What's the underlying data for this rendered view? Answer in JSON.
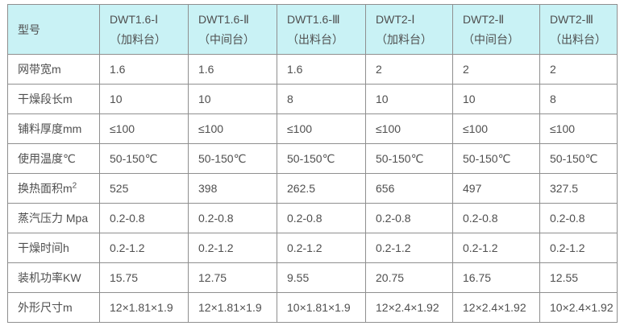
{
  "colors": {
    "header_background": "#c9f2f5",
    "outer_border": "#333333",
    "inner_border": "#8f8f8f",
    "text": "#4f4f4f",
    "page_background": "#ffffff"
  },
  "table": {
    "corner_label": "型号",
    "columns": [
      {
        "model": "DWT1.6-Ⅰ",
        "station": "（加料台）"
      },
      {
        "model": "DWT1.6-Ⅱ",
        "station": "（中间台）"
      },
      {
        "model": "DWT1.6-Ⅲ",
        "station": "（出料台）"
      },
      {
        "model": "DWT2-Ⅰ",
        "station": "（加料台）"
      },
      {
        "model": "DWT2-Ⅱ",
        "station": "（中间台）"
      },
      {
        "model": "DWT2-Ⅲ",
        "station": "（出料台）"
      }
    ],
    "rows": [
      {
        "label": "网带宽m",
        "label_sup": "",
        "values": [
          "1.6",
          "1.6",
          "1.6",
          "2",
          "2",
          "2"
        ]
      },
      {
        "label": "干燥段长m",
        "label_sup": "",
        "values": [
          "10",
          "10",
          "8",
          "10",
          "10",
          "8"
        ]
      },
      {
        "label": "铺料厚度mm",
        "label_sup": "",
        "values": [
          "≤100",
          "≤100",
          "≤100",
          "≤100",
          "≤100",
          "≤100"
        ]
      },
      {
        "label": "使用温度℃",
        "label_sup": "",
        "values": [
          "50-150℃",
          "50-150℃",
          "50-150℃",
          "50-150℃",
          "50-150℃",
          "50-150℃"
        ]
      },
      {
        "label": "换热面积m",
        "label_sup": "2",
        "values": [
          "525",
          "398",
          "262.5",
          "656",
          "497",
          "327.5"
        ]
      },
      {
        "label": "蒸汽压力 Mpa",
        "label_sup": "",
        "values": [
          "0.2-0.8",
          "0.2-0.8",
          "0.2-0.8",
          "0.2-0.8",
          "0.2-0.8",
          "0.2-0.8"
        ]
      },
      {
        "label": "干燥时间h",
        "label_sup": "",
        "values": [
          "0.2-1.2",
          "0.2-1.2",
          "0.2-1.2",
          "0.2-1.2",
          "0.2-1.2",
          "0.2-1.2"
        ]
      },
      {
        "label": "装机功率KW",
        "label_sup": "",
        "values": [
          "15.75",
          "12.75",
          "9.55",
          "20.75",
          "16.75",
          "12.55"
        ]
      },
      {
        "label": "外形尺寸m",
        "label_sup": "",
        "values": [
          "12×1.81×1.9",
          "12×1.81×1.9",
          "10×1.81×1.9",
          "12×2.4×1.92",
          "12×2.4×1.92",
          "10×2.4×1.92"
        ]
      }
    ]
  },
  "chart_data": {
    "type": "table",
    "title": "",
    "columns": [
      "型号",
      "DWT1.6-Ⅰ（加料台）",
      "DWT1.6-Ⅱ（中间台）",
      "DWT1.6-Ⅲ（出料台）",
      "DWT2-Ⅰ（加料台）",
      "DWT2-Ⅱ（中间台）",
      "DWT2-Ⅲ（出料台）"
    ],
    "rows": [
      [
        "网带宽m",
        "1.6",
        "1.6",
        "1.6",
        "2",
        "2",
        "2"
      ],
      [
        "干燥段长m",
        "10",
        "10",
        "8",
        "10",
        "10",
        "8"
      ],
      [
        "铺料厚度mm",
        "≤100",
        "≤100",
        "≤100",
        "≤100",
        "≤100",
        "≤100"
      ],
      [
        "使用温度℃",
        "50-150℃",
        "50-150℃",
        "50-150℃",
        "50-150℃",
        "50-150℃",
        "50-150℃"
      ],
      [
        "换热面积m²",
        "525",
        "398",
        "262.5",
        "656",
        "497",
        "327.5"
      ],
      [
        "蒸汽压力 Mpa",
        "0.2-0.8",
        "0.2-0.8",
        "0.2-0.8",
        "0.2-0.8",
        "0.2-0.8",
        "0.2-0.8"
      ],
      [
        "干燥时间h",
        "0.2-1.2",
        "0.2-1.2",
        "0.2-1.2",
        "0.2-1.2",
        "0.2-1.2",
        "0.2-1.2"
      ],
      [
        "装机功率KW",
        "15.75",
        "12.75",
        "9.55",
        "20.75",
        "16.75",
        "12.55"
      ],
      [
        "外形尺寸m",
        "12×1.81×1.9",
        "12×1.81×1.9",
        "10×1.81×1.9",
        "12×2.4×1.92",
        "12×2.4×1.92",
        "10×2.4×1.92"
      ]
    ]
  }
}
